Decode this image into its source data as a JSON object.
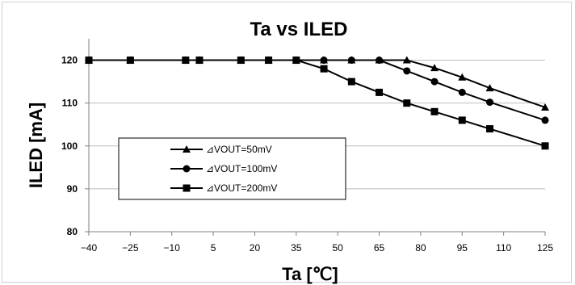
{
  "chart_data": {
    "type": "line",
    "title": "Ta vs ILED",
    "xlabel": "Ta [℃]",
    "ylabel": "ILED [mA]",
    "xlim": [
      -40,
      125
    ],
    "ylim": [
      80,
      125
    ],
    "x_ticks": [
      -40,
      -25,
      -10,
      5,
      20,
      35,
      50,
      65,
      80,
      95,
      110,
      125
    ],
    "y_ticks": [
      80,
      90,
      100,
      110,
      120
    ],
    "grid": "horizontal",
    "legend_position": "center-left",
    "colors": {
      "line": "#000000",
      "grid": "#bdbdbd",
      "axis": "#808080"
    },
    "series": [
      {
        "name": "⊿VOUT=50mV",
        "marker": "triangle",
        "x": [
          -40,
          -25,
          -5,
          0,
          15,
          25,
          35,
          45,
          55,
          65,
          75,
          85,
          95,
          105,
          125
        ],
        "y": [
          120,
          120,
          120,
          120,
          120,
          120,
          120,
          120,
          120,
          120,
          120,
          118.2,
          116,
          113.5,
          109
        ]
      },
      {
        "name": "⊿VOUT=100mV",
        "marker": "circle",
        "x": [
          -40,
          -25,
          -5,
          0,
          15,
          25,
          35,
          45,
          55,
          65,
          75,
          85,
          95,
          105,
          125
        ],
        "y": [
          120,
          120,
          120,
          120,
          120,
          120,
          120,
          120,
          120,
          120,
          117.5,
          115,
          112.5,
          110.2,
          106
        ]
      },
      {
        "name": "⊿VOUT=200mV",
        "marker": "square",
        "x": [
          -40,
          -25,
          -5,
          0,
          15,
          25,
          35,
          45,
          55,
          65,
          75,
          85,
          95,
          105,
          125
        ],
        "y": [
          120,
          120,
          120,
          120,
          120,
          120,
          120,
          118,
          115,
          112.5,
          110,
          108,
          106,
          104,
          100
        ]
      }
    ]
  }
}
